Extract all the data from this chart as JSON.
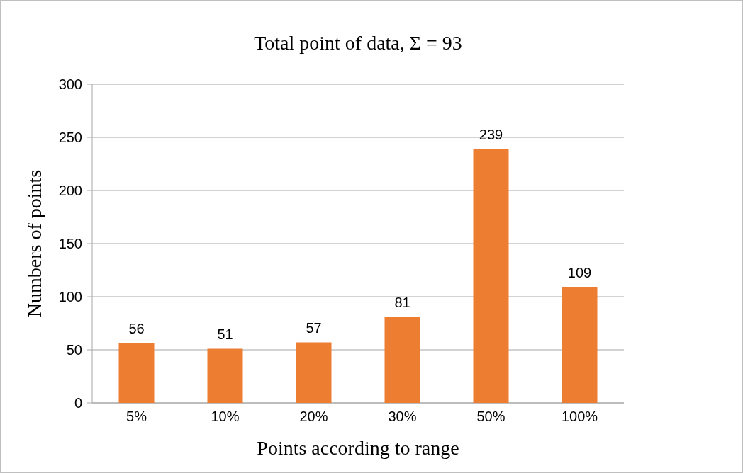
{
  "chart_data": {
    "type": "bar",
    "title": "Total point of data, Σ =  93",
    "xlabel": "Points according to range",
    "ylabel": "Numbers of points",
    "categories": [
      "5%",
      "10%",
      "20%",
      "30%",
      "50%",
      "100%"
    ],
    "values": [
      56,
      51,
      57,
      81,
      239,
      109
    ],
    "color": "#ed7d31",
    "ylim": [
      0,
      300
    ],
    "yticks": [
      0,
      50,
      100,
      150,
      200,
      250,
      300
    ],
    "grid": "y",
    "data_labels": true
  }
}
